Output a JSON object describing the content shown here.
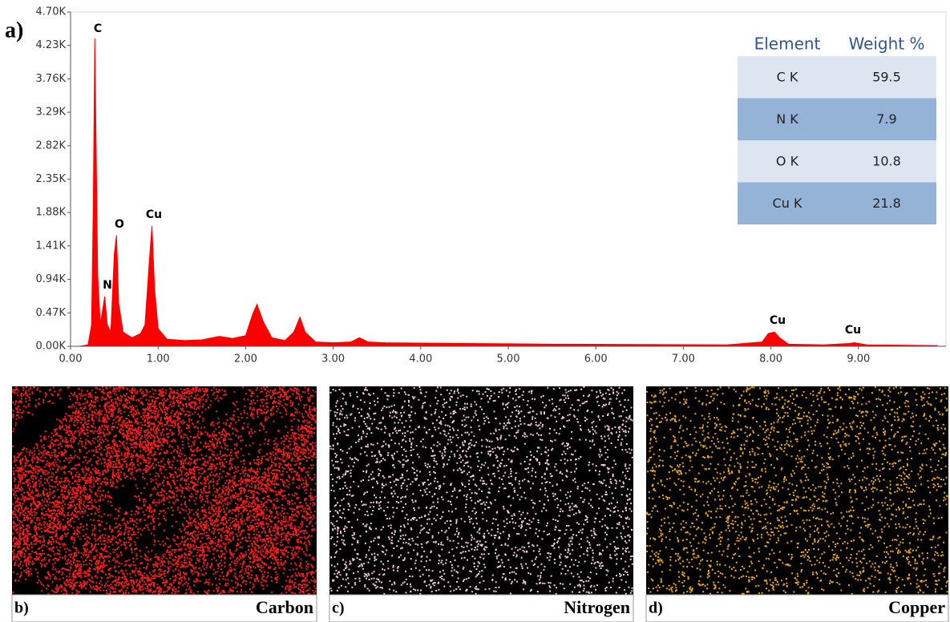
{
  "chart_data": {
    "type": "area",
    "panel_label": "a)",
    "x": [
      0.1,
      0.2,
      0.24,
      0.26,
      0.277,
      0.29,
      0.31,
      0.34,
      0.39,
      0.42,
      0.46,
      0.5,
      0.525,
      0.55,
      0.6,
      0.7,
      0.8,
      0.85,
      0.9,
      0.93,
      0.96,
      1.0,
      1.1,
      1.3,
      1.5,
      1.7,
      1.85,
      2.0,
      2.08,
      2.13,
      2.2,
      2.3,
      2.45,
      2.55,
      2.62,
      2.68,
      2.8,
      3.0,
      3.2,
      3.3,
      3.4,
      3.6,
      4.0,
      4.5,
      5.0,
      5.5,
      6.0,
      6.5,
      7.0,
      7.5,
      7.9,
      7.97,
      8.04,
      8.1,
      8.2,
      8.6,
      8.9,
      8.95,
      9.1,
      9.5,
      9.9
    ],
    "values": [
      0,
      20,
      300,
      2000,
      4330,
      3000,
      1000,
      300,
      700,
      300,
      200,
      1300,
      1560,
      600,
      200,
      120,
      180,
      300,
      1200,
      1690,
      800,
      250,
      100,
      80,
      90,
      140,
      110,
      150,
      450,
      590,
      350,
      120,
      80,
      200,
      410,
      200,
      60,
      50,
      60,
      120,
      60,
      50,
      45,
      40,
      35,
      30,
      28,
      25,
      22,
      20,
      60,
      180,
      200,
      120,
      30,
      20,
      40,
      50,
      20,
      15,
      10
    ],
    "color": "#ff0000",
    "xlim": [
      0,
      10
    ],
    "ylim": [
      0,
      4700
    ],
    "xticks": [
      {
        "value": 0,
        "label": "0.00"
      },
      {
        "value": 1,
        "label": "1.00"
      },
      {
        "value": 2,
        "label": "2.00"
      },
      {
        "value": 3,
        "label": "3.00"
      },
      {
        "value": 4,
        "label": "4.00"
      },
      {
        "value": 5,
        "label": "5.00"
      },
      {
        "value": 6,
        "label": "6.00"
      },
      {
        "value": 7,
        "label": "7.00"
      },
      {
        "value": 8,
        "label": "8.00"
      },
      {
        "value": 9,
        "label": "9.00"
      }
    ],
    "yticks": [
      {
        "value": 0,
        "label": "0.00K"
      },
      {
        "value": 470,
        "label": "0.47K"
      },
      {
        "value": 940,
        "label": "0.94K"
      },
      {
        "value": 1410,
        "label": "1.41K"
      },
      {
        "value": 1880,
        "label": "1.88K"
      },
      {
        "value": 2350,
        "label": "2.35K"
      },
      {
        "value": 2820,
        "label": "2.82K"
      },
      {
        "value": 3290,
        "label": "3.29K"
      },
      {
        "value": 3760,
        "label": "3.76K"
      },
      {
        "value": 4230,
        "label": "4.23K"
      },
      {
        "value": 4700,
        "label": "4.70K"
      }
    ],
    "annotations": [
      "C",
      "N",
      "O",
      "Cu",
      "Cu",
      "Cu"
    ],
    "table": {
      "columns": [
        "Element",
        "Weight %"
      ],
      "rows": [
        [
          "C K",
          59.5
        ],
        [
          "N K",
          7.9
        ],
        [
          "O K",
          10.8
        ],
        [
          "Cu K",
          21.8
        ]
      ]
    }
  },
  "maps": [
    {
      "tag": "b)",
      "label": "Carbon",
      "color": "#ff1a1a"
    },
    {
      "tag": "c)",
      "label": "Nitrogen",
      "color": "#f2c8d8"
    },
    {
      "tag": "d)",
      "label": "Copper",
      "color": "#f0a800"
    }
  ]
}
